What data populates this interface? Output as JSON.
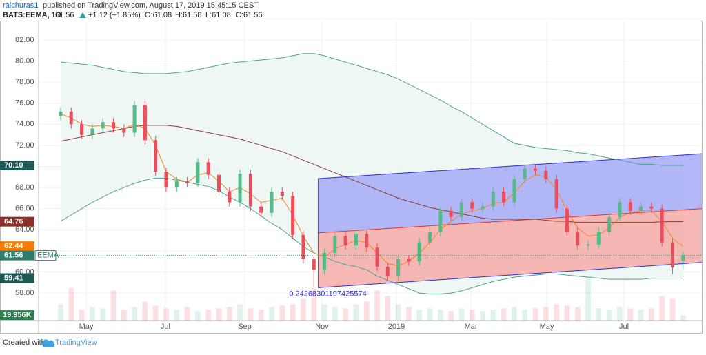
{
  "chart_data": {
    "type": "candlestick",
    "header": {
      "author": "raichuras1",
      "published": "published on TradingView.com, August 17, 2019 15:45:15 CEST",
      "symbol": "BATS:EEMA, 1D",
      "price": "61.56",
      "change": "+1.12 (+1.85%)",
      "ohlc": [
        "O:61.08",
        "H:61.58",
        "L:61.08",
        "C:61.56"
      ]
    },
    "footer": {
      "created": "Created with",
      "brand": "TradingView"
    },
    "up_color": "#53b987",
    "down_color": "#eb4d5c",
    "xlim": [
      -2.09,
      60.78
    ],
    "ylim": [
      55.39,
      83.76
    ],
    "yticks": [
      {
        "value": 58,
        "label": "58.00"
      },
      {
        "value": 60,
        "label": "60.00"
      },
      {
        "value": 62,
        "label": "62.00"
      },
      {
        "value": 64,
        "label": "64.00"
      },
      {
        "value": 66,
        "label": "66.00"
      },
      {
        "value": 68,
        "label": "68.00"
      },
      {
        "value": 70,
        "label": "70.00"
      },
      {
        "value": 72,
        "label": "72.00"
      },
      {
        "value": 74,
        "label": "74.00"
      },
      {
        "value": 76,
        "label": "76.00"
      },
      {
        "value": 78,
        "label": "78.00"
      },
      {
        "value": 80,
        "label": "80.00"
      },
      {
        "value": 82,
        "label": "82.00"
      }
    ],
    "xticks": [
      {
        "value": 2.42,
        "label": "May"
      },
      {
        "value": 9.93,
        "label": "Jul"
      },
      {
        "value": 17.45,
        "label": "Sep"
      },
      {
        "value": 24.77,
        "label": "Nov"
      },
      {
        "value": 31.83,
        "label": "2019"
      },
      {
        "value": 38.89,
        "label": "Mar"
      },
      {
        "value": 46.08,
        "label": "May"
      },
      {
        "value": 53.4,
        "label": "Jul"
      }
    ],
    "open": [
      74.8,
      75.2,
      74.0,
      73.0,
      73.6,
      74.2,
      73.6,
      73.2,
      75.8,
      72.5,
      69.5,
      68.0,
      68.6,
      68.4,
      70.4,
      69.2,
      67.6,
      66.6,
      69.3,
      66.2,
      65.6,
      67.6,
      67.2,
      63.5,
      61.2,
      60.2,
      61.8,
      63.4,
      62.5,
      63.6,
      62.3,
      60.5,
      59.6,
      61.2,
      61.0,
      62.8,
      63.8,
      65.8,
      65.2,
      66.6,
      66.0,
      66.2,
      67.6,
      66.6,
      68.8,
      69.8,
      69.6,
      68.8,
      66.0,
      63.8,
      62.5,
      62.6,
      63.8,
      65.2,
      66.6,
      65.8,
      66.2,
      66.0,
      62.8,
      61.08
    ],
    "high": [
      75.6,
      75.6,
      74.4,
      74.0,
      74.6,
      74.6,
      74.0,
      76.2,
      76.2,
      72.9,
      69.9,
      69.0,
      69.0,
      70.8,
      70.8,
      69.6,
      68.0,
      69.7,
      69.7,
      66.6,
      68.0,
      68.0,
      67.6,
      63.9,
      61.6,
      62.2,
      63.8,
      63.8,
      64.0,
      64.0,
      62.7,
      60.9,
      61.6,
      61.6,
      63.2,
      64.2,
      66.2,
      66.2,
      67.0,
      67.0,
      66.6,
      68.0,
      68.0,
      69.2,
      70.2,
      70.2,
      70.0,
      69.2,
      66.4,
      64.2,
      63.0,
      64.2,
      65.6,
      67.0,
      67.0,
      66.6,
      66.6,
      66.4,
      63.2,
      61.9
    ],
    "low": [
      74.4,
      73.6,
      72.6,
      72.6,
      73.2,
      73.2,
      72.8,
      72.8,
      72.1,
      69.1,
      67.6,
      67.6,
      68.0,
      68.0,
      68.8,
      67.2,
      66.2,
      66.2,
      65.8,
      65.2,
      65.2,
      66.8,
      63.1,
      60.8,
      58.6,
      59.8,
      61.4,
      62.1,
      62.1,
      61.9,
      60.1,
      59.2,
      59.2,
      60.6,
      60.6,
      62.4,
      63.4,
      64.8,
      64.8,
      65.6,
      65.6,
      65.8,
      66.2,
      66.2,
      68.4,
      69.2,
      68.4,
      65.6,
      63.4,
      62.1,
      62.1,
      62.2,
      63.4,
      64.8,
      65.4,
      65.4,
      65.6,
      62.4,
      59.8,
      60.2
    ],
    "close": [
      75.2,
      74.0,
      73.0,
      73.6,
      74.2,
      73.6,
      73.2,
      75.8,
      72.5,
      69.5,
      68.0,
      68.6,
      68.4,
      70.4,
      69.2,
      67.6,
      66.6,
      69.3,
      66.2,
      65.6,
      67.6,
      67.2,
      63.5,
      61.2,
      60.2,
      61.8,
      63.4,
      62.5,
      63.6,
      62.3,
      60.5,
      59.6,
      61.2,
      61.0,
      62.8,
      63.8,
      65.8,
      65.2,
      66.6,
      66.0,
      66.2,
      67.6,
      66.6,
      68.8,
      69.8,
      69.6,
      68.8,
      66.0,
      63.8,
      62.5,
      62.6,
      63.8,
      65.2,
      66.6,
      65.8,
      66.2,
      66.0,
      62.8,
      60.4,
      61.56
    ],
    "bollinger": {
      "color": "#4d9f93",
      "fill": "#eef7f4",
      "upper": [
        79.9,
        79.8,
        79.7,
        79.6,
        79.4,
        79.2,
        79.0,
        78.9,
        78.8,
        78.8,
        78.8,
        78.9,
        79.0,
        79.2,
        79.4,
        79.6,
        79.8,
        79.9,
        80.0,
        80.1,
        80.2,
        80.3,
        80.5,
        80.7,
        80.7,
        80.5,
        80.2,
        79.9,
        79.6,
        79.3,
        79.0,
        78.7,
        78.3,
        77.8,
        77.3,
        76.8,
        76.3,
        75.7,
        75.2,
        74.6,
        74.0,
        73.4,
        72.8,
        72.2,
        72.0,
        71.8,
        71.7,
        71.6,
        71.5,
        71.3,
        71.2,
        71.0,
        70.8,
        70.6,
        70.4,
        70.2,
        70.2,
        70.1,
        70.1,
        70.1
      ],
      "lower": [
        64.8,
        65.4,
        66.0,
        66.6,
        67.1,
        67.6,
        68.0,
        68.4,
        68.7,
        68.9,
        68.9,
        68.7,
        68.5,
        68.3,
        68.1,
        67.7,
        67.1,
        66.6,
        66.0,
        65.3,
        64.6,
        64.0,
        63.2,
        62.4,
        61.8,
        61.4,
        61.0,
        60.7,
        60.5,
        60.2,
        59.6,
        59.2,
        58.8,
        58.4,
        58.0,
        57.9,
        57.9,
        58.0,
        58.2,
        58.5,
        58.8,
        59.1,
        59.3,
        59.5,
        59.6,
        59.7,
        59.8,
        59.8,
        59.7,
        59.6,
        59.5,
        59.4,
        59.3,
        59.3,
        59.3,
        59.3,
        59.4,
        59.4,
        59.4,
        59.41
      ]
    },
    "ema": {
      "color": "#f5832a",
      "values": [
        75.0,
        74.6,
        74.0,
        73.8,
        73.9,
        73.8,
        73.6,
        74.0,
        73.6,
        72.0,
        69.5,
        68.8,
        68.5,
        69.2,
        69.4,
        68.6,
        67.6,
        68.0,
        67.4,
        66.6,
        66.8,
        67.0,
        65.4,
        63.4,
        61.8,
        61.4,
        62.2,
        62.6,
        63.0,
        62.8,
        61.8,
        60.8,
        60.6,
        61.0,
        61.8,
        62.8,
        64.0,
        64.8,
        65.5,
        65.8,
        66.0,
        66.5,
        66.6,
        67.5,
        68.6,
        69.2,
        69.0,
        67.8,
        65.8,
        64.2,
        63.4,
        63.5,
        64.2,
        65.2,
        65.6,
        65.8,
        65.8,
        64.8,
        63.2,
        62.44
      ]
    },
    "ma": {
      "color": "#8b3a2e",
      "values": [
        72.4,
        72.6,
        72.8,
        73.0,
        73.2,
        73.4,
        73.6,
        73.8,
        73.9,
        73.9,
        73.9,
        73.8,
        73.6,
        73.4,
        73.2,
        73.0,
        72.8,
        72.6,
        72.3,
        72.0,
        71.7,
        71.4,
        71.0,
        70.6,
        70.2,
        69.8,
        69.4,
        69.0,
        68.6,
        68.2,
        67.8,
        67.4,
        67.0,
        66.7,
        66.4,
        66.1,
        65.9,
        65.7,
        65.5,
        65.3,
        65.1,
        65.0,
        65.0,
        65.0,
        65.0,
        65.0,
        64.9,
        64.8,
        64.8,
        64.7,
        64.7,
        64.7,
        64.7,
        64.7,
        64.7,
        64.7,
        64.7,
        64.76,
        64.76,
        64.76
      ]
    },
    "channel": {
      "x": [
        24.4,
        60.78
      ],
      "upper": [
        68.85,
        71.2
      ],
      "middle": [
        63.7,
        66.0
      ],
      "lower": [
        58.5,
        60.9
      ],
      "line_color": "#2b2fd6",
      "mid_color": "#e0342c",
      "upper_fill": "#a6aaf6",
      "lower_fill": "#f4aca8",
      "label": "0.24268301197425574"
    },
    "volume": {
      "vlim": [
        0,
        1100000
      ],
      "color": "#53b987",
      "down_color": "#eb4d5c",
      "values": [
        60000,
        120000,
        40000,
        50000,
        45000,
        110000,
        40000,
        50000,
        70000,
        55000,
        45000,
        40000,
        50000,
        35000,
        40000,
        45000,
        50000,
        60000,
        45000,
        40000,
        50000,
        55000,
        60000,
        80000,
        120000,
        60000,
        50000,
        45000,
        60000,
        70000,
        110000,
        90000,
        60000,
        50000,
        40000,
        45000,
        40000,
        35000,
        45000,
        40000,
        35000,
        40000,
        45000,
        50000,
        40000,
        45000,
        50000,
        60000,
        55000,
        50000,
        190000,
        45000,
        40000,
        50000,
        45000,
        40000,
        45000,
        90000,
        80000,
        19956
      ],
      "label": {
        "value": 19956,
        "label": "19.956K",
        "color": "#2e7d4f"
      }
    },
    "price_labels": [
      {
        "value": 70.1,
        "label": "70.10",
        "color": "#1d5a55"
      },
      {
        "value": 64.76,
        "label": "64.76",
        "color": "#8b2f28"
      },
      {
        "value": 62.44,
        "label": "62.44",
        "color": "#f57c00"
      },
      {
        "value": 61.56,
        "label": "61.56",
        "color": "#2e7d6b",
        "tag": "EEMA"
      },
      {
        "value": 59.41,
        "label": "59.41",
        "color": "#1d5a55"
      }
    ]
  }
}
